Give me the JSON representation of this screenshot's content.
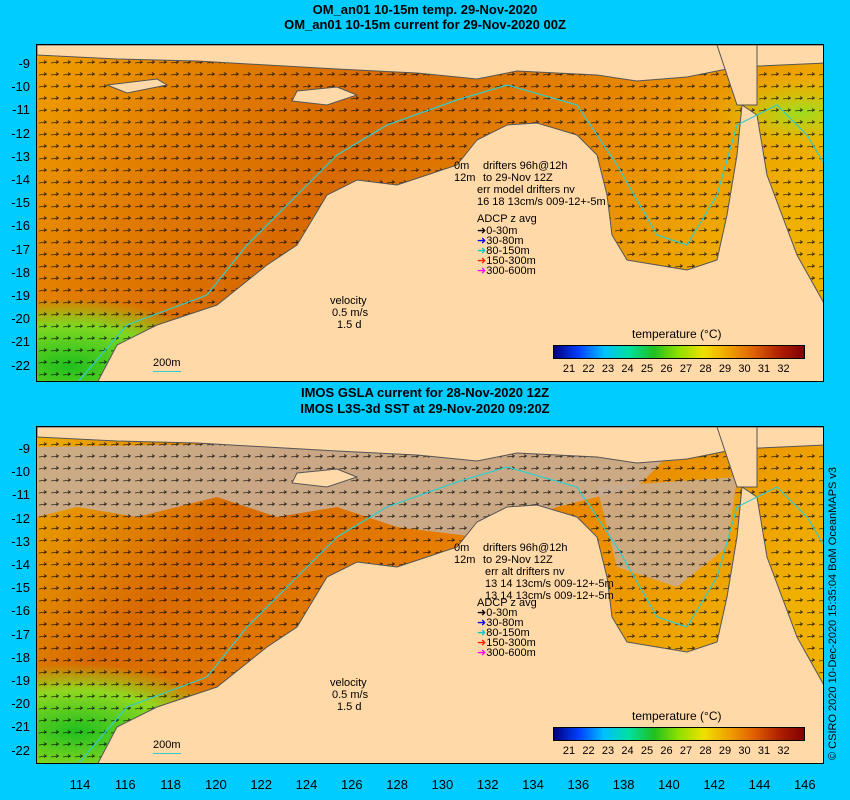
{
  "top_panel": {
    "title_line1": "OM_an01 10-15m temp. 29-Nov-2020",
    "title_line2": "OM_an01 10-15m current for 29-Nov-2020 00Z",
    "drifters_l1": "0m",
    "drifters_l1b": "drifters 96h@12h",
    "drifters_l2": "12m",
    "drifters_l2b": "to 29-Nov 12Z",
    "drifters_l3": "err model drifters nv",
    "drifters_l4": "16 18 13cm/s 009-12+-5m",
    "adcp_title": "ADCP z avg",
    "adcp": [
      "0-30m",
      "30-80m",
      "80-150m",
      "150-300m",
      "300-600m"
    ],
    "velocity_l1": "velocity",
    "velocity_l2": "0.5 m/s",
    "velocity_l3": "1.5 d",
    "depth_label": "200m",
    "cbar_title": "temperature (°C)"
  },
  "bottom_panel": {
    "title_line1": "IMOS GSLA current for 28-Nov-2020 12Z",
    "title_line2": "IMOS L3S-3d SST at 29-Nov-2020 09:20Z",
    "drifters_l1": "0m",
    "drifters_l1b": "drifters 96h@12h",
    "drifters_l2": "12m",
    "drifters_l2b": "to 29-Nov 12Z",
    "drifters_l3": "err alt drifters nv",
    "drifters_l4": "13 14 13cm/s 009-12+-5m",
    "drifters_l5": "13 14 13cm/s 009-12+-5m",
    "adcp_title": "ADCP z avg",
    "adcp": [
      "0-30m",
      "30-80m",
      "80-150m",
      "150-300m",
      "300-600m"
    ],
    "velocity_l1": "velocity",
    "velocity_l2": "0.5 m/s",
    "velocity_l3": "1.5 d",
    "depth_label": "200m",
    "cbar_title": "temperature (°C)"
  },
  "colorbar_labels": [
    "21",
    "22",
    "23",
    "24",
    "25",
    "26",
    "27",
    "28",
    "29",
    "30",
    "31",
    "32"
  ],
  "lat_ticks": [
    "-9",
    "-10",
    "-11",
    "-12",
    "-13",
    "-14",
    "-15",
    "-16",
    "-17",
    "-18",
    "-19",
    "-20",
    "-21",
    "-22"
  ],
  "lon_ticks": [
    "114",
    "116",
    "118",
    "120",
    "122",
    "124",
    "126",
    "128",
    "130",
    "132",
    "134",
    "136",
    "138",
    "140",
    "142",
    "144",
    "146"
  ],
  "credit": "© CSIRO 2020  10-Dec-2020 15:35:04 BoM OceanMAPS v3",
  "colors": {
    "background": "#00ccff",
    "land": "#ffd9a8",
    "nodata": "#c8ad94",
    "sst_warm": "#d86a00",
    "sst_mid": "#f5a000",
    "sst_cool": "#1fbf1f",
    "isobath": "#33cccc"
  },
  "adcp_colors": [
    "#000000",
    "#0000ff",
    "#00cccc",
    "#ff2200",
    "#ff00ff"
  ]
}
